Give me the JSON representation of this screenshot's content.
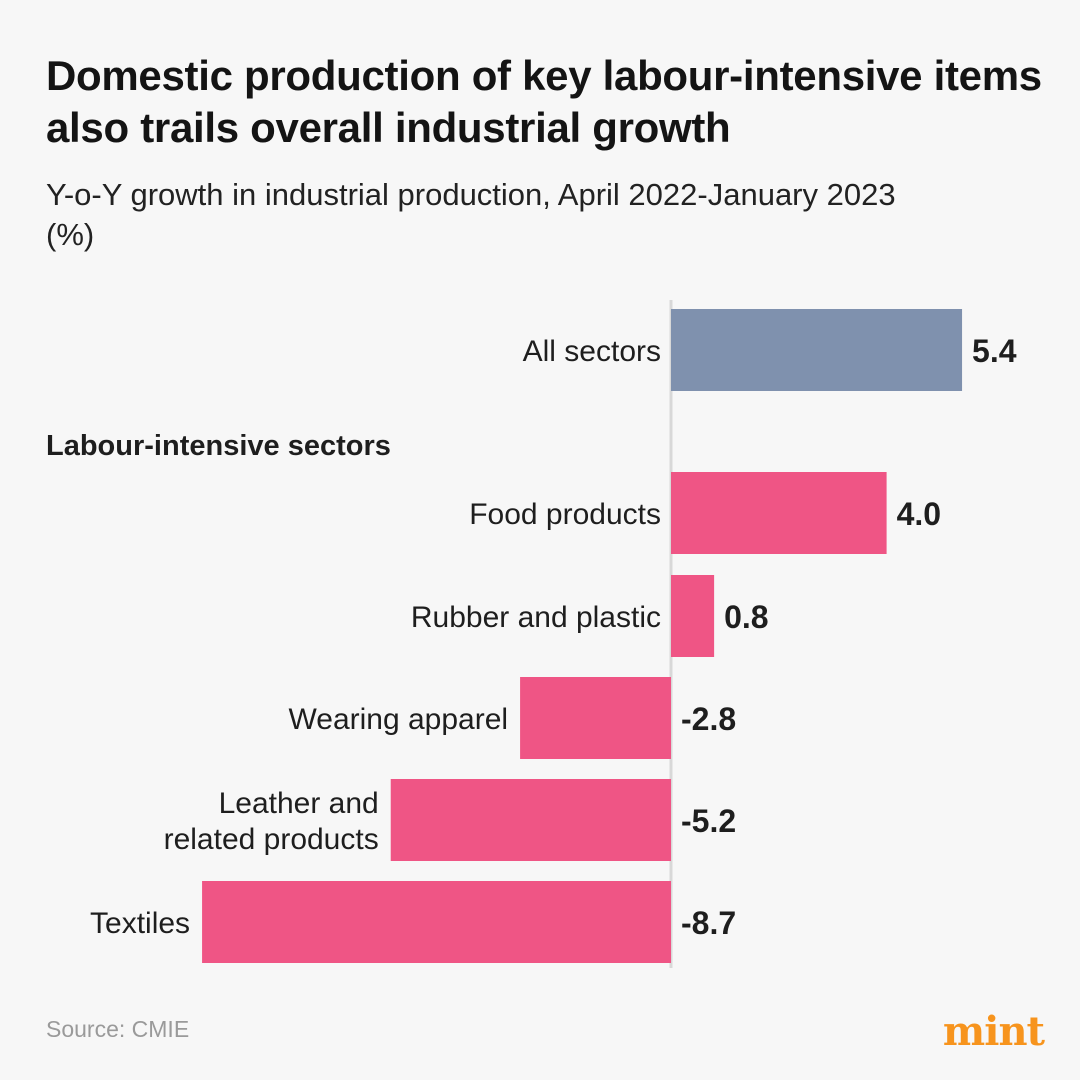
{
  "chart_data": {
    "type": "bar",
    "orientation": "horizontal",
    "title": "Domestic production of key labour-intensive items also trails overall industrial growth",
    "subtitle": "Y-o-Y growth in industrial production, April 2022-January 2023 (%)",
    "group_label": "Labour-intensive sectors",
    "categories": [
      {
        "label": [
          "All sectors"
        ],
        "value": 5.4,
        "value_label": "5.4",
        "group": "overall"
      },
      {
        "label": [
          "Food products"
        ],
        "value": 4.0,
        "value_label": "4.0",
        "group": "labour"
      },
      {
        "label": [
          "Rubber and plastic"
        ],
        "value": 0.8,
        "value_label": "0.8",
        "group": "labour"
      },
      {
        "label": [
          "Wearing apparel"
        ],
        "value": -2.8,
        "value_label": "-2.8",
        "group": "labour"
      },
      {
        "label": [
          "Leather and",
          "related products"
        ],
        "value": -5.2,
        "value_label": "-5.2",
        "group": "labour"
      },
      {
        "label": [
          "Textiles"
        ],
        "value": -8.7,
        "value_label": "-8.7",
        "group": "labour"
      }
    ],
    "colors": {
      "overall": "#7f91ae",
      "labour": "#ef5585",
      "axis": "#d8d8d8"
    }
  },
  "footer": {
    "source": "Source: CMIE",
    "brand": "mint"
  }
}
